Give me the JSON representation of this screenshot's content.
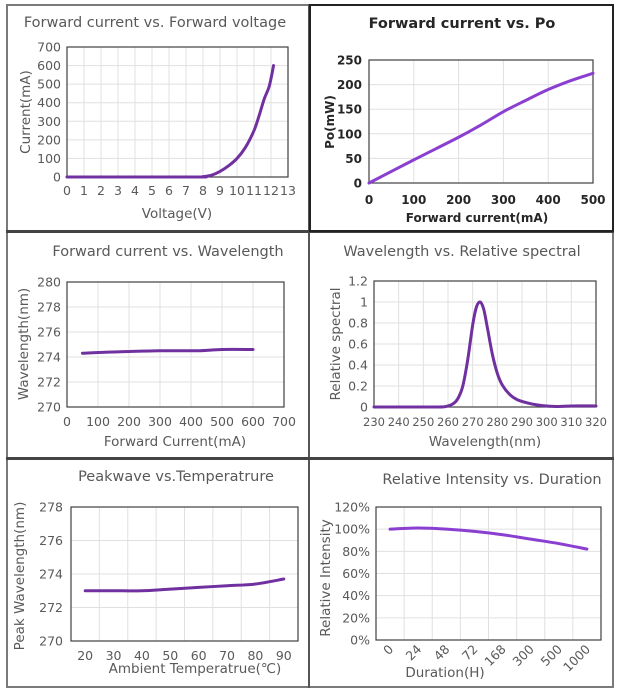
{
  "colors": {
    "series": "#7030a0",
    "series_bright": "#8a3fd1"
  },
  "chart_data": [
    {
      "id": "fv",
      "type": "line",
      "title": "Forward current vs. Forward voltage",
      "xlabel": "Voltage(V)",
      "ylabel": "Current(mA)",
      "xlim": [
        0,
        13
      ],
      "ylim": [
        0,
        700
      ],
      "xticks": [
        "0",
        "1",
        "2",
        "3",
        "4",
        "5",
        "6",
        "7",
        "8",
        "9",
        "10",
        "11",
        "12",
        "13"
      ],
      "yticks": [
        "0",
        "100",
        "200",
        "300",
        "400",
        "500",
        "600",
        "700"
      ],
      "grid": true,
      "series": [
        {
          "name": "Current",
          "x": [
            0,
            7.5,
            8,
            8.5,
            9,
            9.5,
            10,
            10.5,
            11,
            11.3,
            11.6,
            11.9,
            12.15
          ],
          "y": [
            0,
            0,
            2,
            10,
            30,
            60,
            100,
            160,
            250,
            330,
            420,
            490,
            600
          ]
        }
      ]
    },
    {
      "id": "po",
      "type": "line",
      "title": "Forward current vs. Po",
      "xlabel": "Forward current(mA)",
      "ylabel": "Po(mW)",
      "xlim": [
        0,
        500
      ],
      "ylim": [
        0,
        250
      ],
      "xticks": [
        "0",
        "100",
        "200",
        "300",
        "400",
        "500"
      ],
      "yticks": [
        "0",
        "50",
        "100",
        "150",
        "200",
        "250"
      ],
      "grid": true,
      "series": [
        {
          "name": "Po",
          "x": [
            0,
            100,
            200,
            250,
            300,
            350,
            400,
            450,
            500
          ],
          "y": [
            0,
            47,
            93,
            118,
            145,
            168,
            190,
            208,
            223
          ]
        }
      ]
    },
    {
      "id": "wl",
      "type": "line",
      "title": "Forward current vs. Wavelength",
      "xlabel": "Forward Current(mA)",
      "ylabel": "Wavelength(nm)",
      "xlim": [
        0,
        700
      ],
      "ylim": [
        270,
        280
      ],
      "xticks": [
        "0",
        "100",
        "200",
        "300",
        "400",
        "500",
        "600",
        "700"
      ],
      "yticks": [
        "270",
        "272",
        "274",
        "276",
        "278",
        "280"
      ],
      "grid": true,
      "series": [
        {
          "name": "Wavelength",
          "x": [
            50,
            150,
            300,
            420,
            500,
            600
          ],
          "y": [
            274.3,
            274.4,
            274.5,
            274.5,
            274.6,
            274.6
          ]
        }
      ]
    },
    {
      "id": "spec",
      "type": "line",
      "title": "Wavelength vs. Relative spectral",
      "xlabel": "Wavelength(nm)",
      "ylabel": "Relative spectral",
      "xlim": [
        230,
        320
      ],
      "ylim": [
        0,
        1.2
      ],
      "xticks": [
        "230",
        "240",
        "250",
        "260",
        "270",
        "280",
        "290",
        "300",
        "310",
        "320"
      ],
      "yticks": [
        "0",
        "0.2",
        "0.4",
        "0.6",
        "0.8",
        "1",
        "1.2"
      ],
      "grid": true,
      "series": [
        {
          "name": "Relative spectral",
          "x": [
            230,
            255,
            259,
            262,
            264,
            266,
            268,
            270,
            271.5,
            273,
            274.5,
            276,
            278,
            280,
            282,
            285,
            288,
            292,
            296,
            300,
            305,
            310,
            320
          ],
          "y": [
            0,
            0,
            0.005,
            0.03,
            0.08,
            0.2,
            0.45,
            0.78,
            0.95,
            1.0,
            0.93,
            0.75,
            0.5,
            0.32,
            0.21,
            0.12,
            0.07,
            0.04,
            0.02,
            0.01,
            0.005,
            0.01,
            0.01
          ]
        }
      ]
    },
    {
      "id": "temp",
      "type": "line",
      "title": "Peakwave vs.Temperatrure",
      "xlabel": "Ambient Temperatrue(℃)",
      "ylabel": "Peak Wavelength(nm)",
      "categories": [
        "20",
        "30",
        "40",
        "50",
        "60",
        "70",
        "80",
        "90"
      ],
      "ylim": [
        270,
        278
      ],
      "yticks": [
        "270",
        "272",
        "274",
        "276",
        "278"
      ],
      "grid": true,
      "series": [
        {
          "name": "Peak Wavelength",
          "values": [
            273.0,
            273.0,
            273.0,
            273.1,
            273.2,
            273.3,
            273.4,
            273.7
          ]
        }
      ]
    },
    {
      "id": "dur",
      "type": "line",
      "title": "Relative Intensity vs. Duration",
      "xlabel": "Duration(H)",
      "ylabel": "Relative Intensity",
      "categories": [
        "0",
        "24",
        "48",
        "72",
        "168",
        "300",
        "500",
        "1000"
      ],
      "ylim": [
        0,
        120
      ],
      "yticks": [
        "0%",
        "20%",
        "40%",
        "60%",
        "80%",
        "100%",
        "120%"
      ],
      "grid": true,
      "series": [
        {
          "name": "Relative Intensity (%)",
          "values": [
            100,
            101,
            100,
            98,
            95,
            91,
            87,
            82
          ]
        }
      ]
    }
  ]
}
